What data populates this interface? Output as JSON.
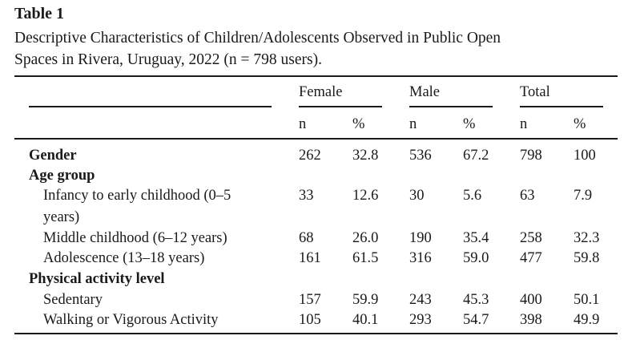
{
  "table": {
    "label": "Table 1",
    "caption_line1": "Descriptive Characteristics of Children/Adolescents Observed in Public Open",
    "caption_line2": "Spaces in Rivera, Uruguay, 2022 (n = 798 users).",
    "groups": [
      "Female",
      "Male",
      "Total"
    ],
    "subheaders": [
      "n",
      "%",
      "n",
      "%",
      "n",
      "%"
    ],
    "rows": [
      {
        "label": "Gender",
        "bold": true,
        "values": [
          "262",
          "32.8",
          "536",
          "67.2",
          "798",
          "100"
        ]
      },
      {
        "label": "Age group",
        "bold": true,
        "values": []
      },
      {
        "label": "Infancy to early childhood (0–5",
        "label2": "years)",
        "values": [
          "33",
          "12.6",
          "30",
          "5.6",
          "63",
          "7.9"
        ]
      },
      {
        "label": "Middle childhood (6–12 years)",
        "values": [
          "68",
          "26.0",
          "190",
          "35.4",
          "258",
          "32.3"
        ]
      },
      {
        "label": "Adolescence (13–18 years)",
        "values": [
          "161",
          "61.5",
          "316",
          "59.0",
          "477",
          "59.8"
        ]
      },
      {
        "label": "Physical activity level",
        "bold": true,
        "values": []
      },
      {
        "label": "Sedentary",
        "values": [
          "157",
          "59.9",
          "243",
          "45.3",
          "400",
          "50.1"
        ]
      },
      {
        "label": "Walking or Vigorous Activity",
        "values": [
          "105",
          "40.1",
          "293",
          "54.7",
          "398",
          "49.9"
        ]
      }
    ]
  }
}
